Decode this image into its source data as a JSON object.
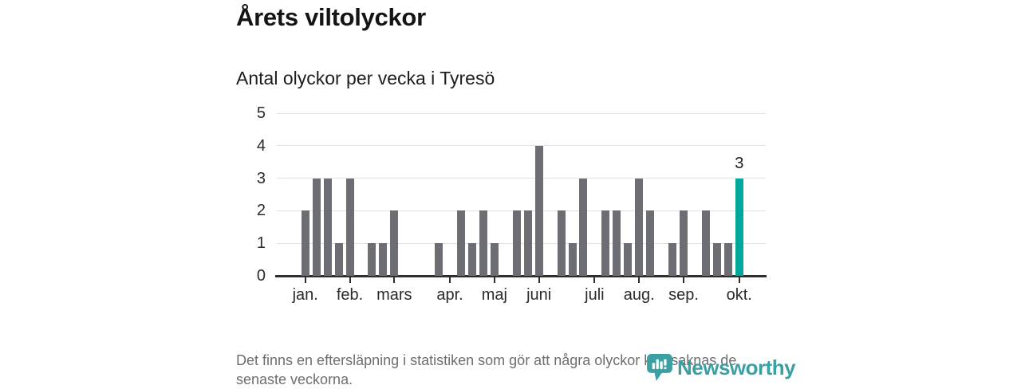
{
  "header": {
    "title": "Årets viltolyckor",
    "subtitle": "Antal olyckor per vecka i Tyresö"
  },
  "chart_data": {
    "type": "bar",
    "title": "Årets viltolyckor",
    "subtitle": "Antal olyckor per vecka i Tyresö",
    "x_unit": "week",
    "xlabel": "",
    "ylabel": "",
    "ylim": [
      0,
      5
    ],
    "yticks": [
      0,
      1,
      2,
      3,
      4,
      5
    ],
    "grid": true,
    "legend": "none",
    "values": [
      2,
      3,
      3,
      1,
      3,
      0,
      1,
      1,
      2,
      0,
      0,
      0,
      1,
      0,
      2,
      1,
      2,
      1,
      0,
      2,
      2,
      4,
      0,
      2,
      1,
      3,
      0,
      2,
      2,
      1,
      3,
      2,
      0,
      1,
      2,
      0,
      2,
      1,
      1,
      3
    ],
    "month_ticks": [
      {
        "label": "jan.",
        "index": 0
      },
      {
        "label": "feb.",
        "index": 4
      },
      {
        "label": "mars",
        "index": 8
      },
      {
        "label": "apr.",
        "index": 13
      },
      {
        "label": "maj",
        "index": 17
      },
      {
        "label": "juni",
        "index": 21
      },
      {
        "label": "juli",
        "index": 26
      },
      {
        "label": "aug.",
        "index": 30
      },
      {
        "label": "sep.",
        "index": 34
      },
      {
        "label": "okt.",
        "index": 39
      }
    ],
    "highlight_index": 39,
    "highlight_label": "3",
    "bar_color": "#6d6d74",
    "highlight_color": "#00a79b",
    "gridline_color": "#e2e2e2",
    "axis_color": "#2e2e2e"
  },
  "footer": {
    "line1": "Det finns en eftersläpning i statistiken som gör att några olyckor kan saknas de",
    "line2": "senaste veckorna."
  },
  "logo": {
    "text": "Newsworthy",
    "color": "#3ba0a4",
    "icon": "newsworthy-speech-bubble-bar-chart-icon"
  }
}
